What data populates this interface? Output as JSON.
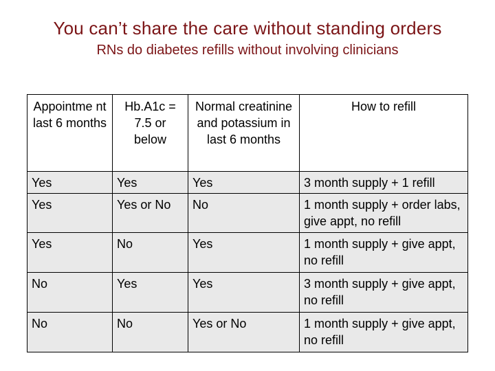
{
  "title": "You can’t share the care without standing orders",
  "subtitle": "RNs do diabetes refills without involving clinicians",
  "table": {
    "headers": [
      "Appointme nt  last 6 months",
      "Hb.A1c = 7.5 or below",
      "Normal creatinine and potassium in last 6 months",
      "How to refill"
    ],
    "rows": [
      [
        "Yes",
        "Yes",
        "Yes",
        "3 month supply + 1 refill"
      ],
      [
        "Yes",
        "Yes or No",
        "No",
        "1 month supply + order labs, give appt, no refill"
      ],
      [
        "Yes",
        "No",
        "Yes",
        "1 month supply + give appt, no refill"
      ],
      [
        "No",
        "Yes",
        "Yes",
        "3 month supply + give appt, no refill"
      ],
      [
        "No",
        "No",
        "Yes or No",
        "1 month supply + give appt, no refill"
      ]
    ]
  },
  "colors": {
    "title": "#7b1416",
    "cell_background": "#e9e9e9",
    "header_background": "#ffffff"
  }
}
